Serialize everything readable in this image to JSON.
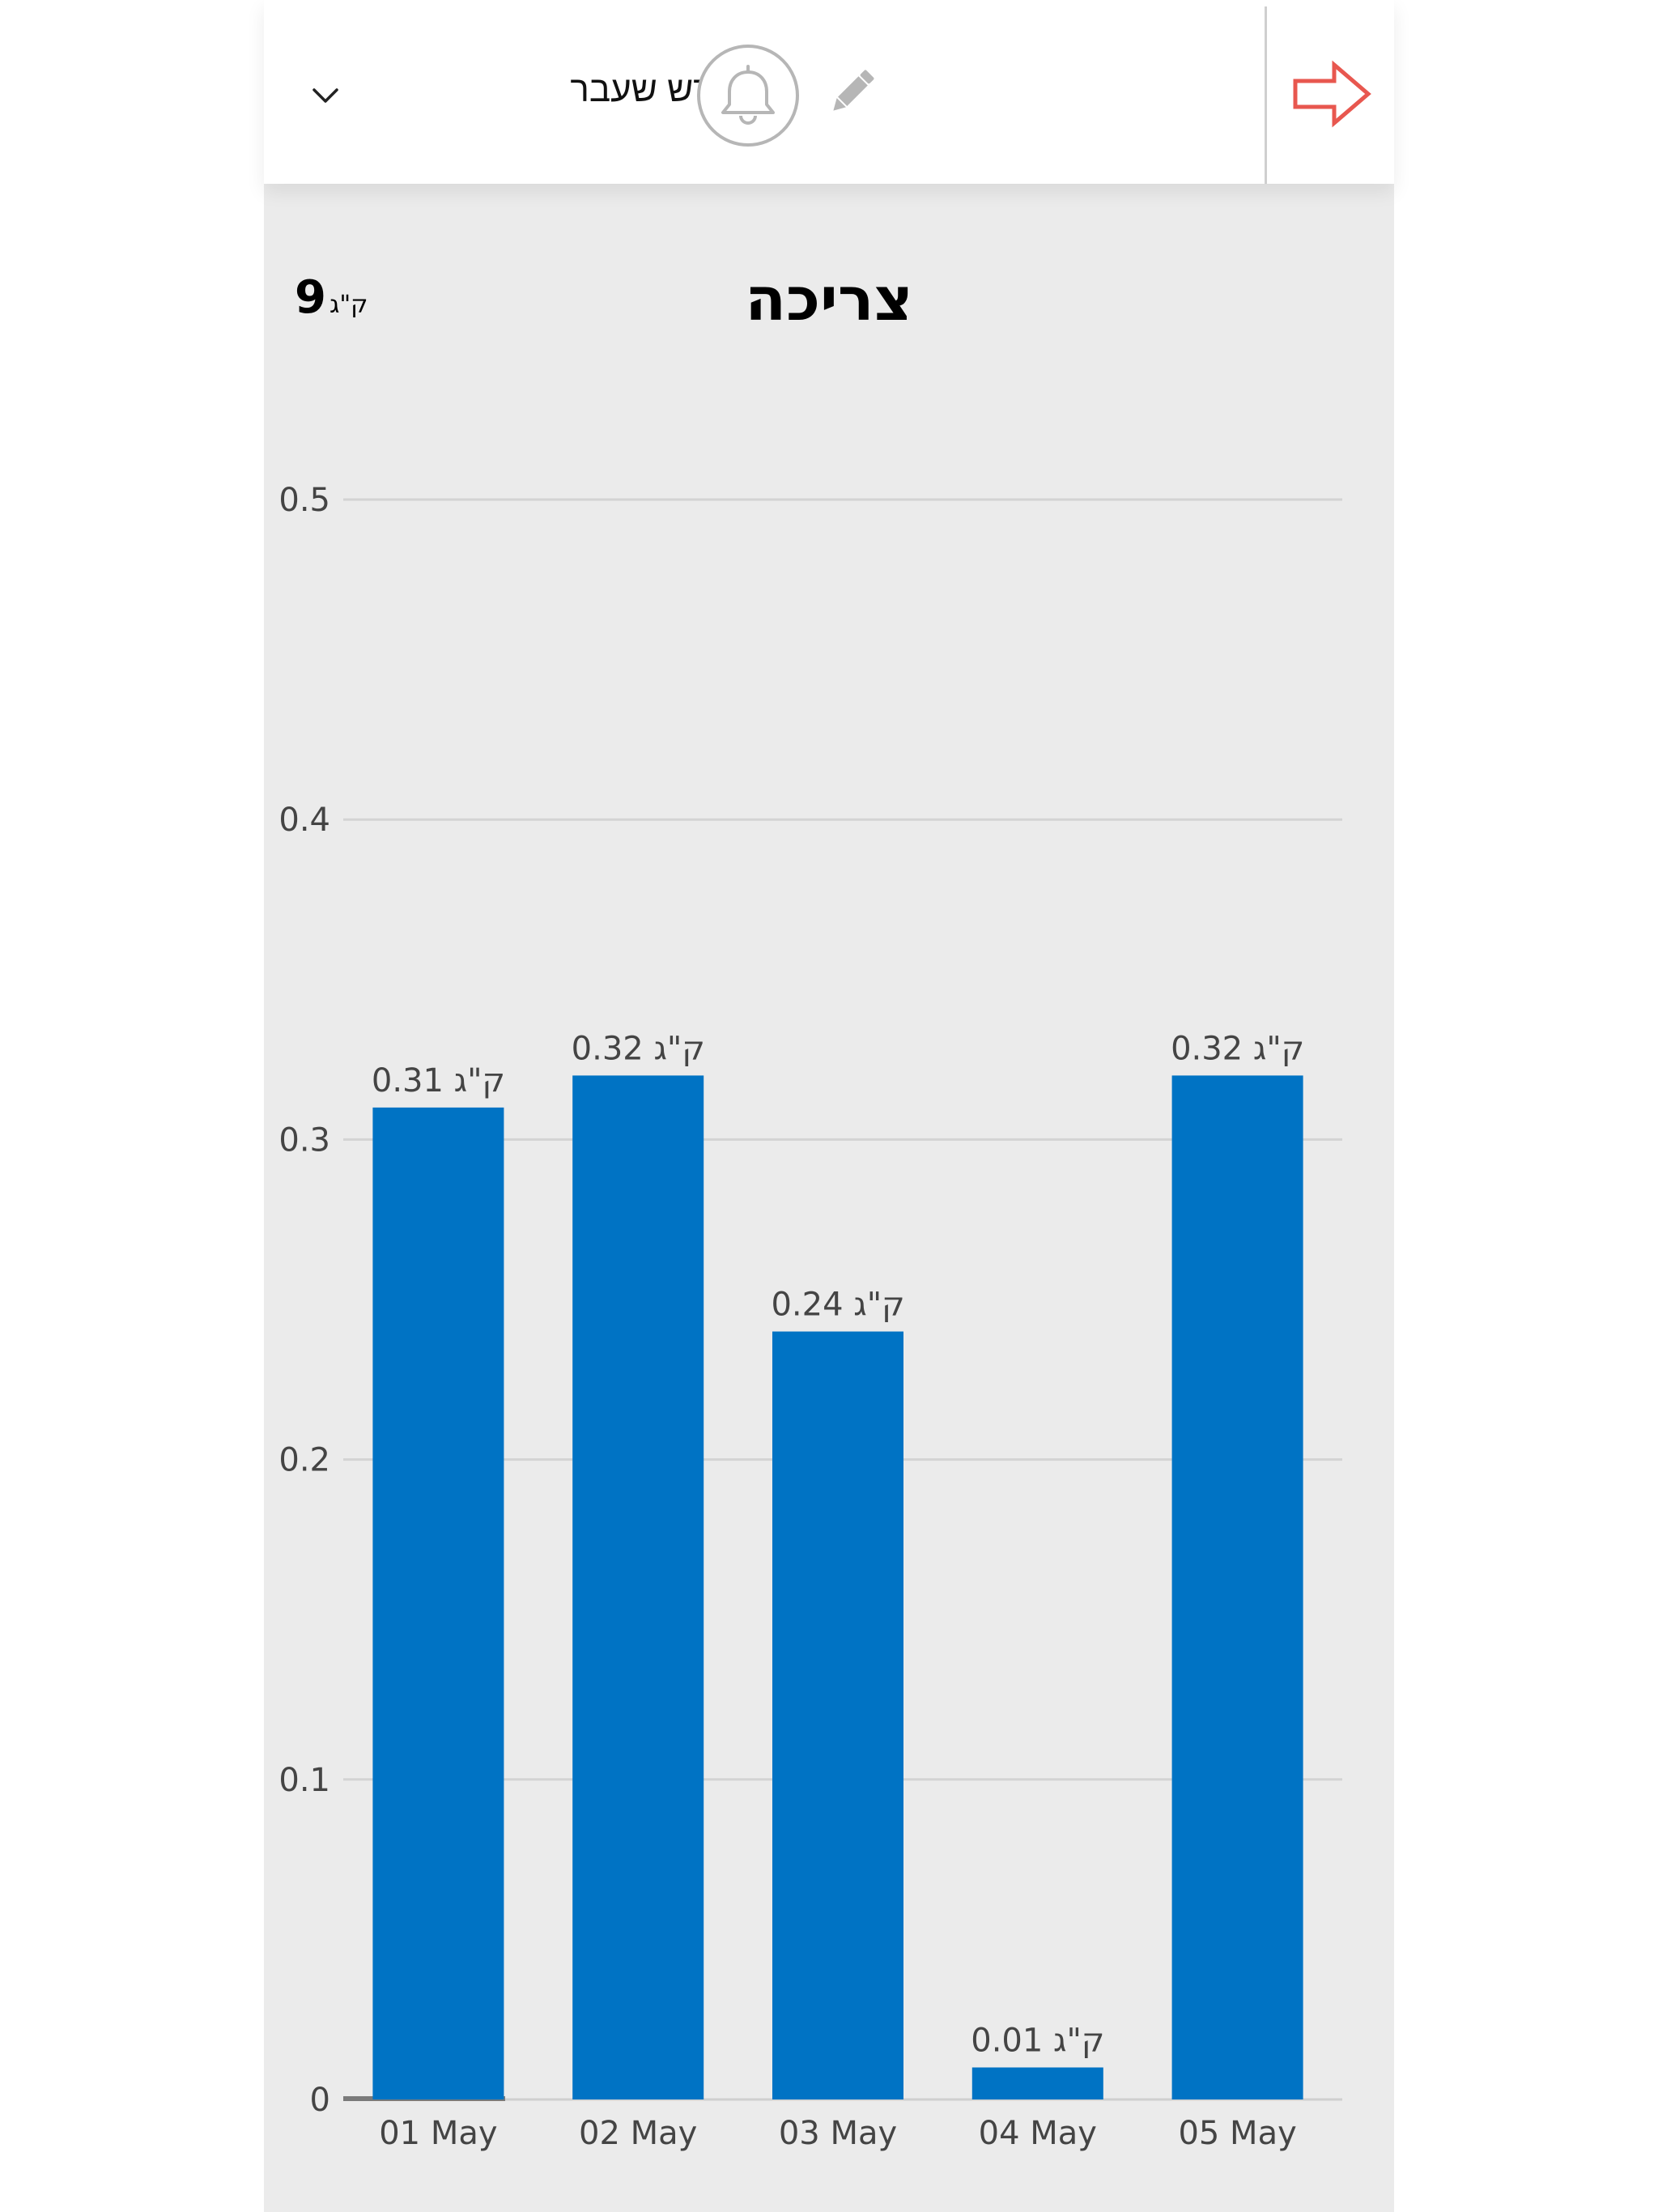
{
  "header": {
    "period_label": "חודש שעבר",
    "icons": {
      "dropdown": "chevron-down-icon",
      "bell": "bell-icon",
      "edit": "pencil-icon",
      "back": "arrow-right-icon"
    },
    "back_arrow_color": "#e8574f"
  },
  "summary": {
    "total_value": "9",
    "total_unit": "ק\"ג"
  },
  "chart_data": {
    "type": "bar",
    "title": "צריכה",
    "categories": [
      "01 May",
      "02 May",
      "03 May",
      "04 May",
      "05 May"
    ],
    "values": [
      0.31,
      0.32,
      0.24,
      0.01,
      0.32
    ],
    "value_labels": [
      "ק\"ג 0.31",
      "ק\"ג 0.32",
      "ק\"ג 0.24",
      "ק\"ג 0.01",
      "ק\"ג 0.32"
    ],
    "y_ticks": [
      0,
      0.1,
      0.2,
      0.3,
      0.4,
      0.5
    ],
    "y_tick_labels": [
      "0",
      "0.1",
      "0.2",
      "0.3",
      "0.4",
      "0.5"
    ],
    "ylim": [
      0,
      0.5
    ],
    "grid": true,
    "bar_color": "#0073c4"
  }
}
